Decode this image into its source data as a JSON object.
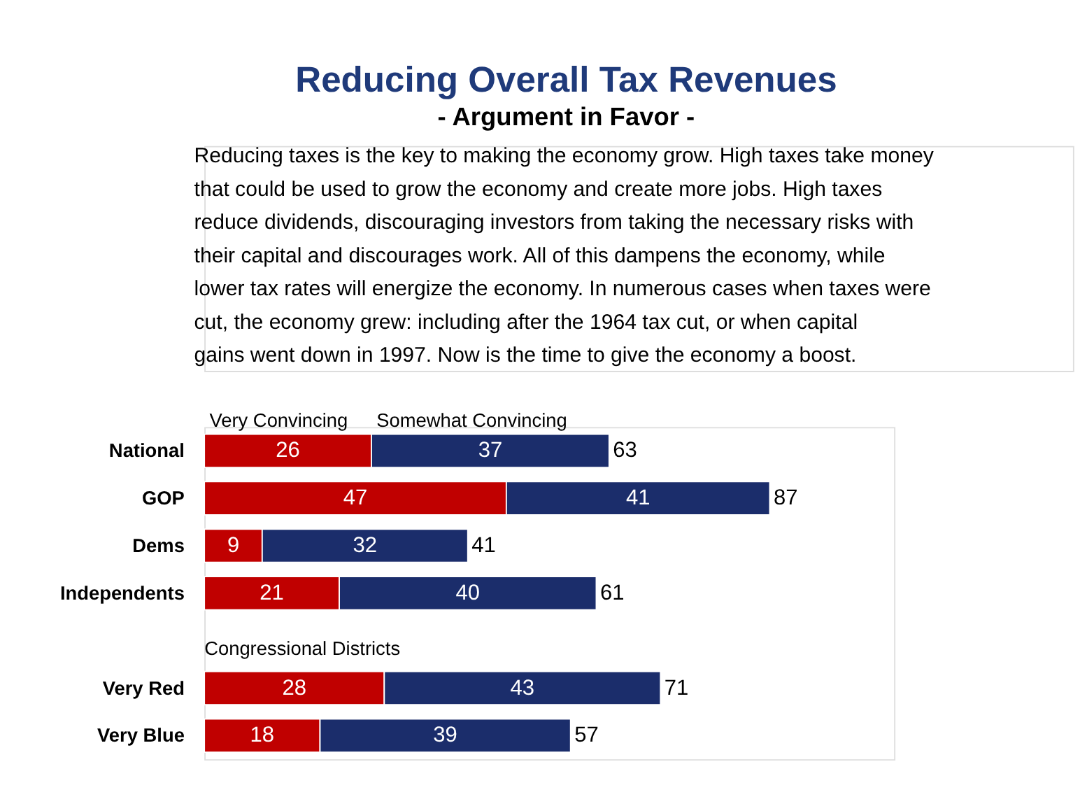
{
  "chart_data": {
    "type": "bar",
    "orientation": "horizontal",
    "stacked": true,
    "title": "Reducing Overall Tax Revenues",
    "subtitle": "- Argument in Favor -",
    "annotations": [
      "Reducing taxes is the key to making the economy grow. High taxes take money that could be used to grow the economy and create more jobs. High taxes reduce dividends, discouraging investors from taking the necessary risks with their capital and discourages work. All of this dampens the economy, while lower tax rates will energize the economy. In numerous cases when taxes were cut, the economy grew: including after the 1964 tax cut, or when capital gains went down in 1997. Now is the time to give the economy a boost.",
      "Congressional Districts"
    ],
    "categories": [
      "National",
      "GOP",
      "Dems",
      "Independents",
      null,
      "Very Red",
      "Very Blue"
    ],
    "series": [
      {
        "name": "Very Convincing",
        "color": "#c00000",
        "values": [
          26,
          47,
          9,
          21,
          null,
          28,
          18
        ]
      },
      {
        "name": "Somewhat Convincing",
        "color": "#1b2d6b",
        "values": [
          37,
          41,
          32,
          40,
          null,
          43,
          39
        ]
      }
    ],
    "totals": [
      "63",
      "87",
      "41",
      "61",
      null,
      "71",
      "57"
    ],
    "data_labels": true,
    "legend": "top"
  }
}
